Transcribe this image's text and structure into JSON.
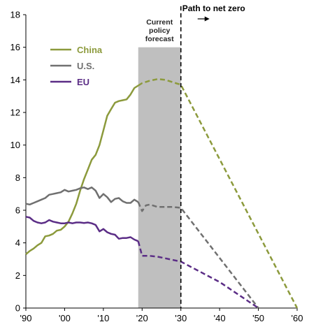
{
  "chart_data": {
    "type": "line",
    "xlim": [
      1990,
      2060
    ],
    "ylim": [
      0,
      18
    ],
    "yticks": [
      0,
      2,
      4,
      6,
      8,
      10,
      12,
      14,
      16,
      18
    ],
    "ytick_labels": [
      "0",
      "2",
      "4",
      "6",
      "8",
      "10",
      "12",
      "14",
      "16",
      "18"
    ],
    "xticks": [
      1990,
      2000,
      2010,
      2020,
      2030,
      2040,
      2050,
      2060
    ],
    "xtick_labels": [
      "'90",
      "'00",
      "'10",
      "'20",
      "'30",
      "'40",
      "'50",
      "'60"
    ],
    "grid": false,
    "legend_position": "top-left",
    "shaded_region": {
      "x0": 2019,
      "x1": 2030,
      "color": "#bfbfbf",
      "label_lines": [
        "Current",
        "policy",
        "forecast"
      ]
    },
    "divider": {
      "x": 2030,
      "label": "Path to net zero"
    },
    "series": [
      {
        "name": "China",
        "color": "#8c9a3c",
        "historical": [
          [
            1990,
            3.3
          ],
          [
            1991,
            3.5
          ],
          [
            1992,
            3.65
          ],
          [
            1993,
            3.85
          ],
          [
            1994,
            4.0
          ],
          [
            1995,
            4.4
          ],
          [
            1996,
            4.45
          ],
          [
            1997,
            4.55
          ],
          [
            1998,
            4.75
          ],
          [
            1999,
            4.8
          ],
          [
            2000,
            5.0
          ],
          [
            2001,
            5.3
          ],
          [
            2002,
            5.8
          ],
          [
            2003,
            6.4
          ],
          [
            2004,
            7.2
          ],
          [
            2005,
            7.9
          ],
          [
            2006,
            8.5
          ],
          [
            2007,
            9.1
          ],
          [
            2008,
            9.4
          ],
          [
            2009,
            10.0
          ],
          [
            2010,
            10.9
          ],
          [
            2011,
            11.8
          ],
          [
            2012,
            12.2
          ],
          [
            2013,
            12.6
          ],
          [
            2014,
            12.7
          ],
          [
            2015,
            12.75
          ],
          [
            2016,
            12.8
          ],
          [
            2017,
            13.1
          ],
          [
            2018,
            13.5
          ],
          [
            2019,
            13.65
          ]
        ],
        "projected": [
          [
            2019,
            13.65
          ],
          [
            2020,
            13.8
          ],
          [
            2022,
            13.95
          ],
          [
            2024,
            14.05
          ],
          [
            2026,
            14.0
          ],
          [
            2028,
            13.85
          ],
          [
            2030,
            13.7
          ],
          [
            2060,
            0
          ]
        ]
      },
      {
        "name": "U.S.",
        "color": "#707070",
        "historical": [
          [
            1990,
            6.4
          ],
          [
            1991,
            6.35
          ],
          [
            1992,
            6.45
          ],
          [
            1993,
            6.55
          ],
          [
            1994,
            6.65
          ],
          [
            1995,
            6.75
          ],
          [
            1996,
            6.95
          ],
          [
            1997,
            7.0
          ],
          [
            1998,
            7.05
          ],
          [
            1999,
            7.1
          ],
          [
            2000,
            7.25
          ],
          [
            2001,
            7.15
          ],
          [
            2002,
            7.2
          ],
          [
            2003,
            7.25
          ],
          [
            2004,
            7.35
          ],
          [
            2005,
            7.4
          ],
          [
            2006,
            7.3
          ],
          [
            2007,
            7.4
          ],
          [
            2008,
            7.2
          ],
          [
            2009,
            6.75
          ],
          [
            2010,
            7.0
          ],
          [
            2011,
            6.8
          ],
          [
            2012,
            6.5
          ],
          [
            2013,
            6.7
          ],
          [
            2014,
            6.75
          ],
          [
            2015,
            6.55
          ],
          [
            2016,
            6.45
          ],
          [
            2017,
            6.45
          ],
          [
            2018,
            6.65
          ],
          [
            2019,
            6.5
          ]
        ],
        "projected": [
          [
            2019,
            6.5
          ],
          [
            2020,
            5.95
          ],
          [
            2021,
            6.3
          ],
          [
            2022,
            6.35
          ],
          [
            2024,
            6.2
          ],
          [
            2026,
            6.2
          ],
          [
            2028,
            6.2
          ],
          [
            2030,
            6.15
          ],
          [
            2050,
            0
          ]
        ]
      },
      {
        "name": "EU",
        "color": "#5b2d86",
        "historical": [
          [
            1990,
            5.6
          ],
          [
            1991,
            5.55
          ],
          [
            1992,
            5.35
          ],
          [
            1993,
            5.25
          ],
          [
            1994,
            5.2
          ],
          [
            1995,
            5.25
          ],
          [
            1996,
            5.4
          ],
          [
            1997,
            5.3
          ],
          [
            1998,
            5.25
          ],
          [
            1999,
            5.2
          ],
          [
            2000,
            5.2
          ],
          [
            2001,
            5.25
          ],
          [
            2002,
            5.2
          ],
          [
            2003,
            5.25
          ],
          [
            2004,
            5.25
          ],
          [
            2005,
            5.22
          ],
          [
            2006,
            5.25
          ],
          [
            2007,
            5.2
          ],
          [
            2008,
            5.1
          ],
          [
            2009,
            4.7
          ],
          [
            2010,
            4.85
          ],
          [
            2011,
            4.65
          ],
          [
            2012,
            4.55
          ],
          [
            2013,
            4.5
          ],
          [
            2014,
            4.25
          ],
          [
            2015,
            4.3
          ],
          [
            2016,
            4.3
          ],
          [
            2017,
            4.35
          ],
          [
            2018,
            4.2
          ],
          [
            2019,
            4.1
          ]
        ],
        "projected": [
          [
            2019,
            4.1
          ],
          [
            2020,
            3.2
          ],
          [
            2022,
            3.2
          ],
          [
            2024,
            3.15
          ],
          [
            2026,
            3.05
          ],
          [
            2028,
            2.95
          ],
          [
            2030,
            2.85
          ],
          [
            2040,
            1.6
          ],
          [
            2050,
            0
          ]
        ]
      }
    ]
  }
}
